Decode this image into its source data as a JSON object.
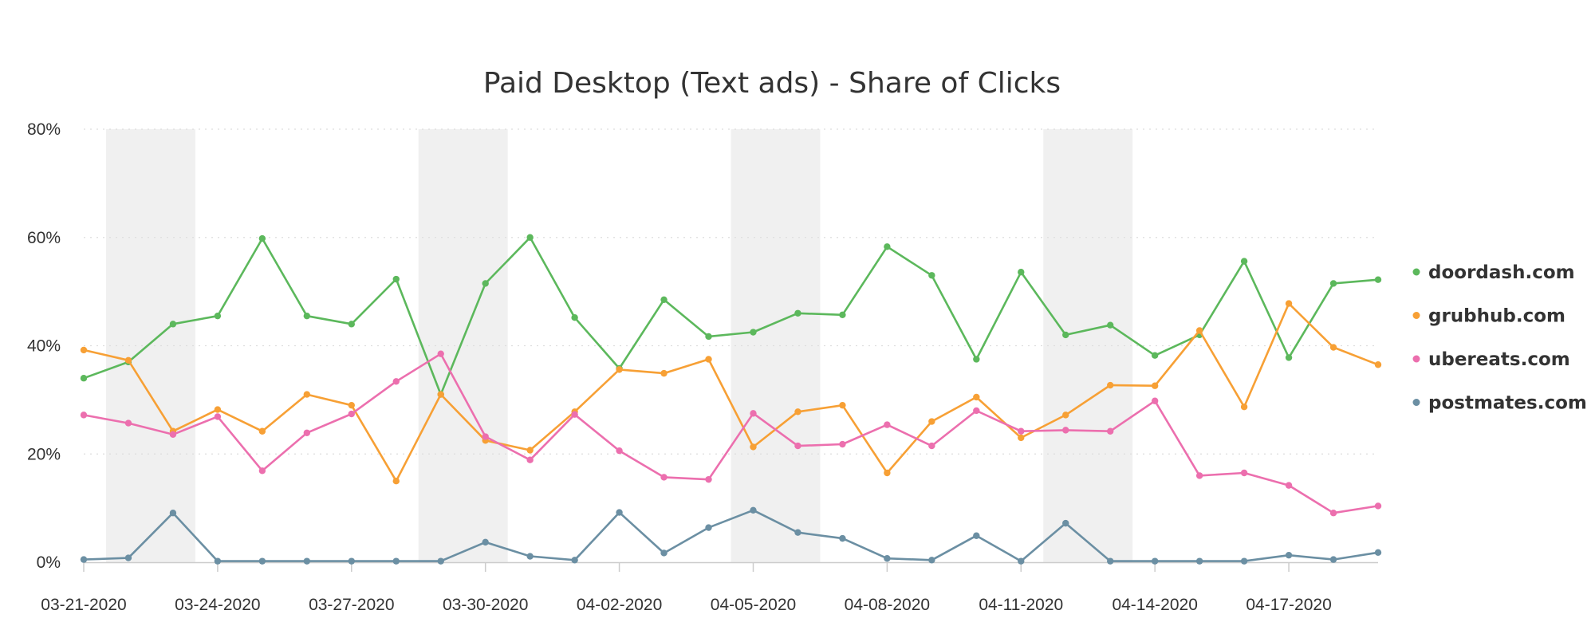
{
  "chart_data": {
    "type": "line",
    "title": "Paid Desktop (Text ads) - Share of Clicks",
    "xlabel": "",
    "ylabel": "",
    "ylim": [
      0,
      80
    ],
    "y_unit": "%",
    "y_ticks": [
      "0%",
      "20%",
      "40%",
      "60%",
      "80%"
    ],
    "y_tick_values": [
      0,
      20,
      40,
      60,
      80
    ],
    "x": [
      "03-21-2020",
      "03-22-2020",
      "03-23-2020",
      "03-24-2020",
      "03-25-2020",
      "03-26-2020",
      "03-27-2020",
      "03-28-2020",
      "03-29-2020",
      "03-30-2020",
      "03-31-2020",
      "04-01-2020",
      "04-02-2020",
      "04-03-2020",
      "04-04-2020",
      "04-05-2020",
      "04-06-2020",
      "04-07-2020",
      "04-08-2020",
      "04-09-2020",
      "04-10-2020",
      "04-11-2020",
      "04-12-2020",
      "04-13-2020",
      "04-14-2020",
      "04-15-2020",
      "04-16-2020",
      "04-17-2020",
      "04-18-2020",
      "04-19-2020"
    ],
    "x_tick_labels": [
      "03-21-2020",
      "03-24-2020",
      "03-27-2020",
      "03-30-2020",
      "04-02-2020",
      "04-05-2020",
      "04-08-2020",
      "04-11-2020",
      "04-14-2020",
      "04-17-2020"
    ],
    "shaded_bands": [
      [
        "03-22-2020",
        "03-23-2020"
      ],
      [
        "03-29-2020",
        "03-30-2020"
      ],
      [
        "04-05-2020",
        "04-06-2020"
      ],
      [
        "04-12-2020",
        "04-13-2020"
      ]
    ],
    "grid": true,
    "legend_position": "right",
    "series": [
      {
        "name": "doordash.com",
        "color": "#5cb85c",
        "values": [
          34,
          37,
          44,
          45.5,
          59.8,
          45.5,
          44,
          52.3,
          31,
          51.5,
          60,
          45.2,
          35.8,
          48.5,
          41.7,
          42.5,
          46,
          45.7,
          58.3,
          53,
          37.5,
          53.6,
          42,
          43.8,
          38.2,
          42,
          55.6,
          37.8,
          51.5,
          52.2
        ]
      },
      {
        "name": "grubhub.com",
        "color": "#f7a035",
        "values": [
          39.2,
          37.3,
          24.2,
          28.2,
          24.2,
          31,
          29,
          15,
          31,
          22.5,
          20.7,
          27.8,
          35.6,
          34.9,
          37.5,
          21.3,
          27.8,
          29,
          16.5,
          26,
          30.5,
          23,
          27.2,
          32.7,
          32.6,
          42.8,
          28.7,
          47.8,
          39.7,
          36.5
        ]
      },
      {
        "name": "ubereats.com",
        "color": "#ec6fae",
        "values": [
          27.2,
          25.7,
          23.6,
          26.9,
          16.9,
          23.9,
          27.4,
          33.4,
          38.5,
          23.2,
          18.9,
          27.3,
          20.6,
          15.7,
          15.3,
          27.5,
          21.5,
          21.8,
          25.4,
          21.5,
          28,
          24.2,
          24.4,
          24.2,
          29.8,
          16,
          16.5,
          14.2,
          9.1,
          10.4
        ]
      },
      {
        "name": "postmates.com",
        "color": "#6b8fa3",
        "values": [
          0.5,
          0.8,
          9.1,
          0.2,
          0.2,
          0.2,
          0.2,
          0.2,
          0.2,
          3.7,
          1.1,
          0.4,
          9.2,
          1.7,
          6.4,
          9.6,
          5.5,
          4.4,
          0.7,
          0.4,
          4.9,
          0.2,
          7.2,
          0.2,
          0.2,
          0.2,
          0.2,
          1.3,
          0.5,
          1.8
        ]
      }
    ]
  }
}
